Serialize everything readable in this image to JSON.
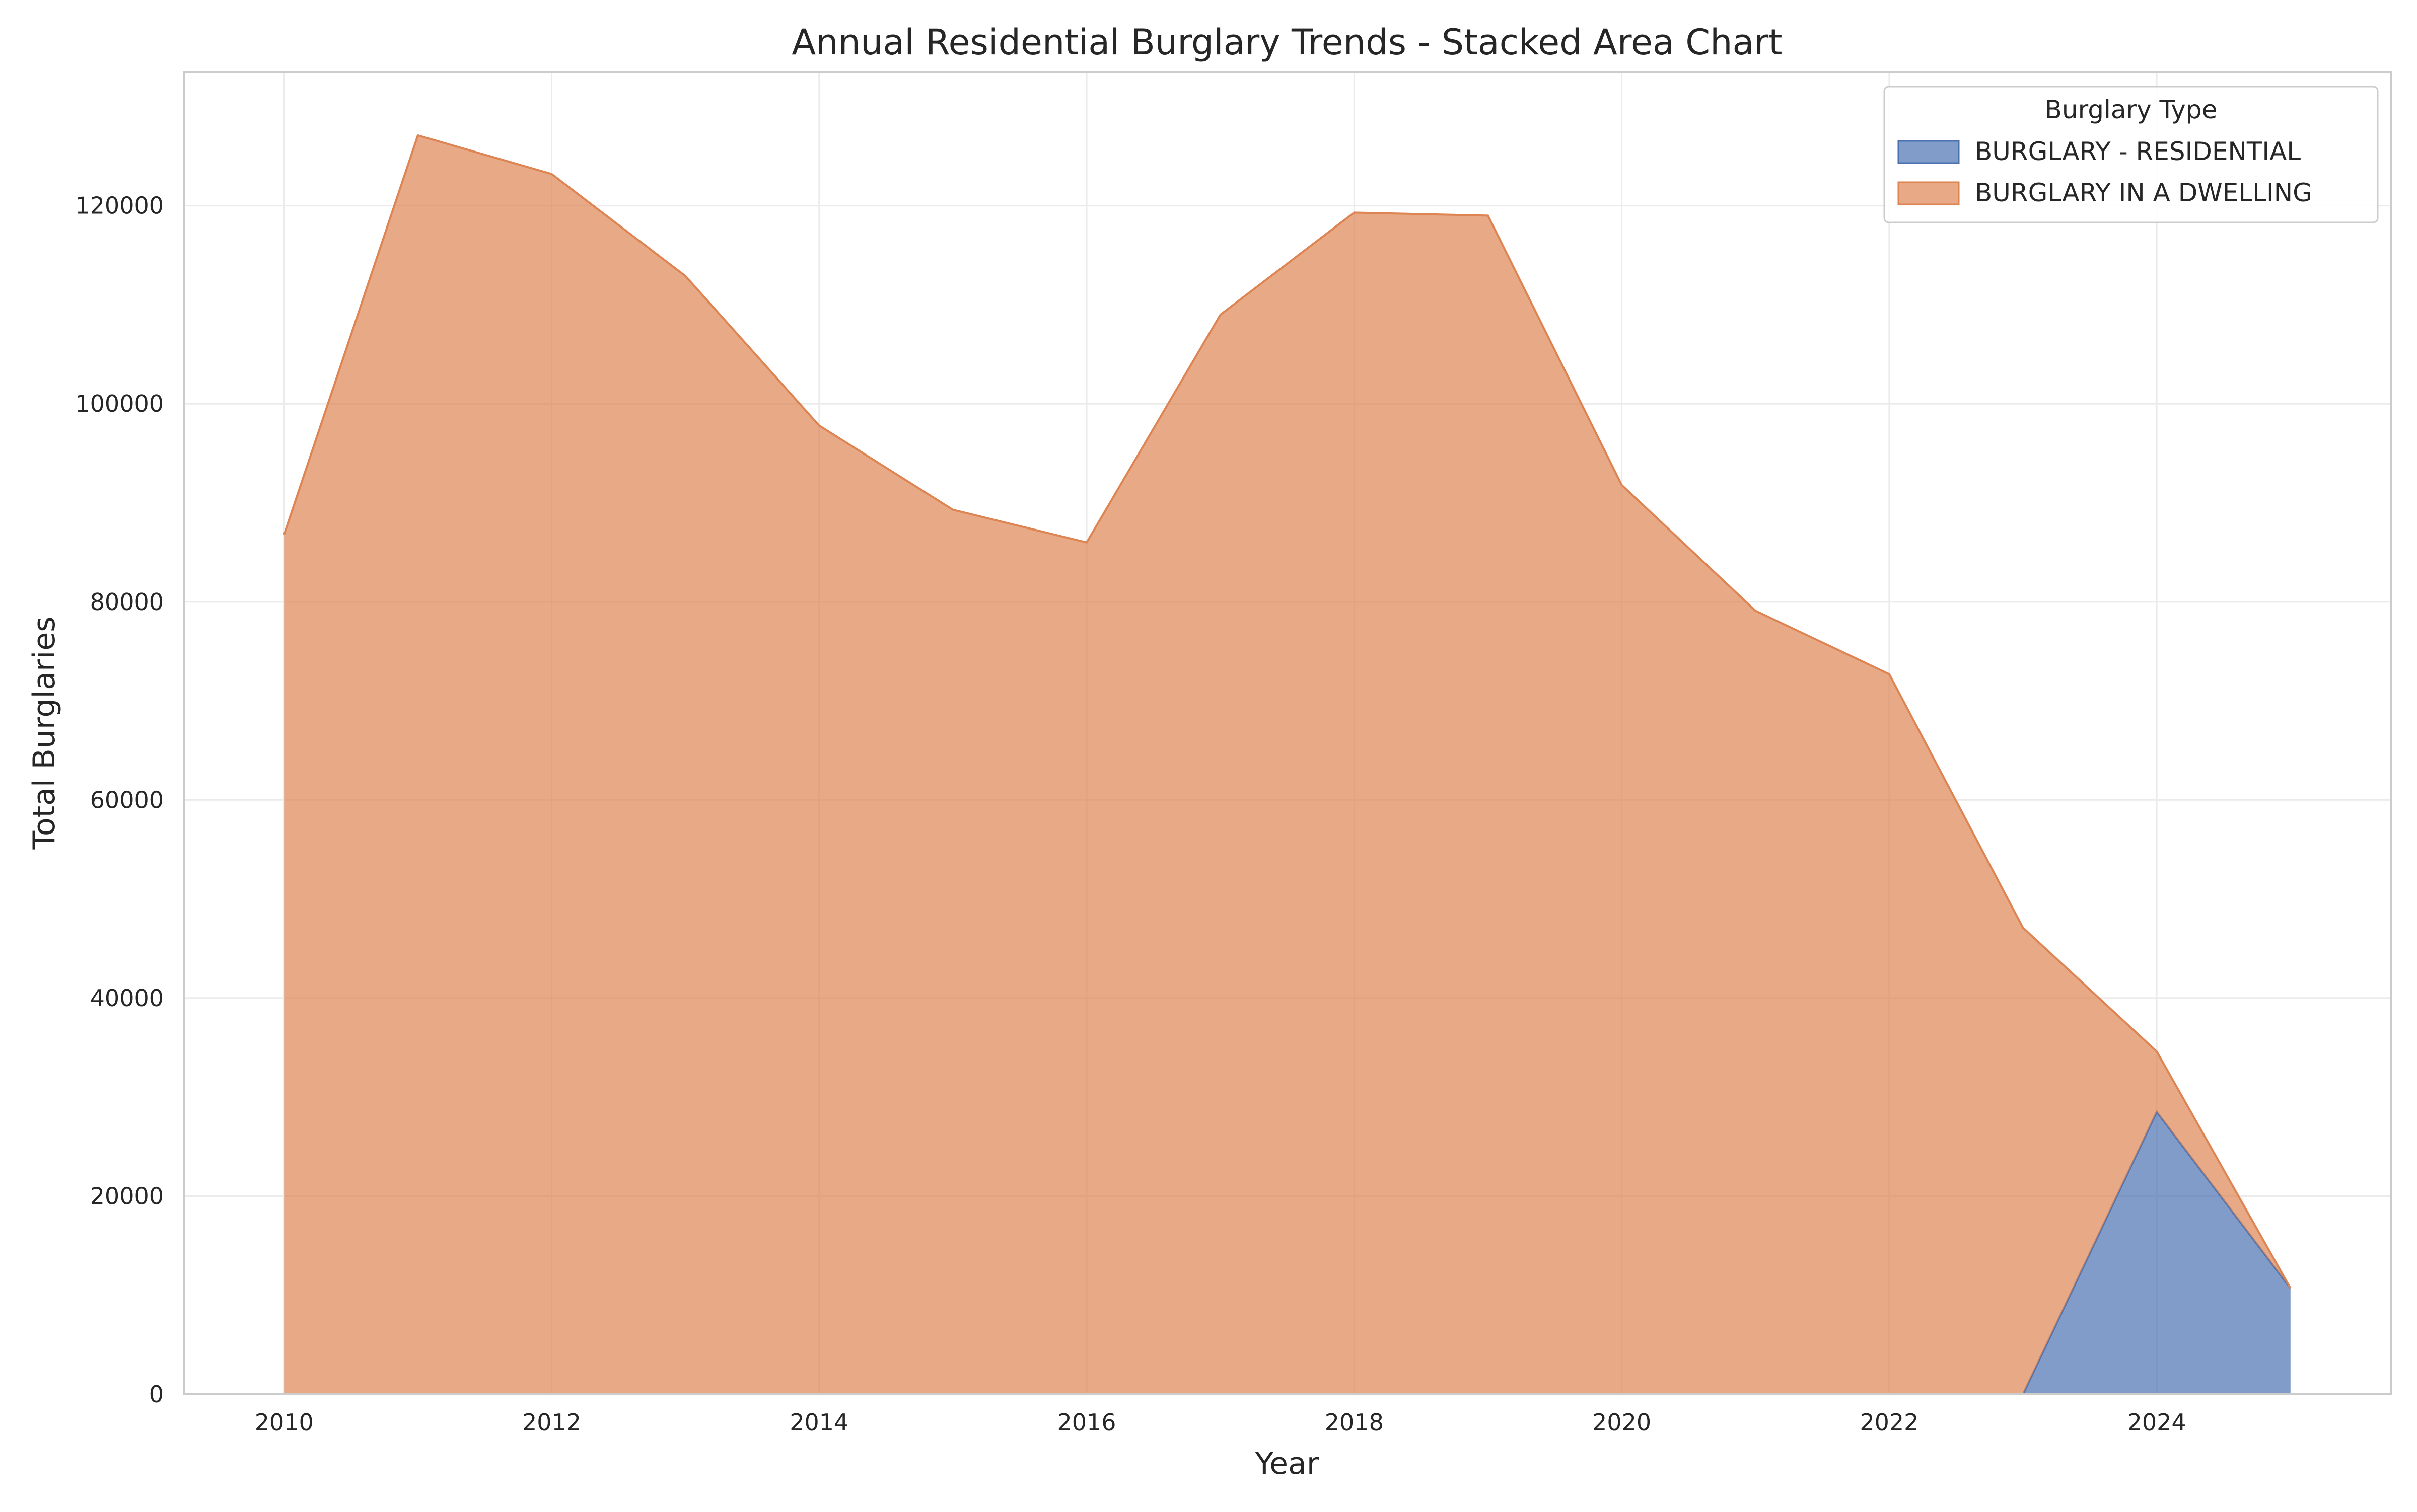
{
  "chart_data": {
    "type": "area",
    "stacked": true,
    "title": "Annual Residential Burglary Trends - Stacked Area Chart",
    "xlabel": "Year",
    "ylabel": "Total Burglaries",
    "x": [
      2010,
      2011,
      2012,
      2013,
      2014,
      2015,
      2016,
      2017,
      2018,
      2019,
      2020,
      2021,
      2022,
      2023,
      2024,
      2025
    ],
    "series": [
      {
        "name": "BURGLARY - RESIDENTIAL",
        "color": "#4c72b0",
        "values": [
          0,
          0,
          0,
          0,
          0,
          0,
          0,
          0,
          0,
          0,
          0,
          0,
          0,
          0,
          28500,
          10700
        ]
      },
      {
        "name": "BURGLARY IN A DWELLING",
        "color": "#dd8452",
        "values": [
          86800,
          127100,
          123200,
          112900,
          97800,
          89300,
          86000,
          109000,
          119300,
          119000,
          91800,
          79100,
          72700,
          47100,
          6100,
          0
        ]
      }
    ],
    "xlim": [
      2009.25,
      2025.75
    ],
    "ylim": [
      0,
      133500
    ],
    "x_ticks": [
      2010,
      2012,
      2014,
      2016,
      2018,
      2020,
      2022,
      2024
    ],
    "y_ticks": [
      0,
      20000,
      40000,
      60000,
      80000,
      100000,
      120000
    ],
    "grid": true,
    "legend": {
      "title": "Burglary Type",
      "placement": "top-right"
    }
  }
}
